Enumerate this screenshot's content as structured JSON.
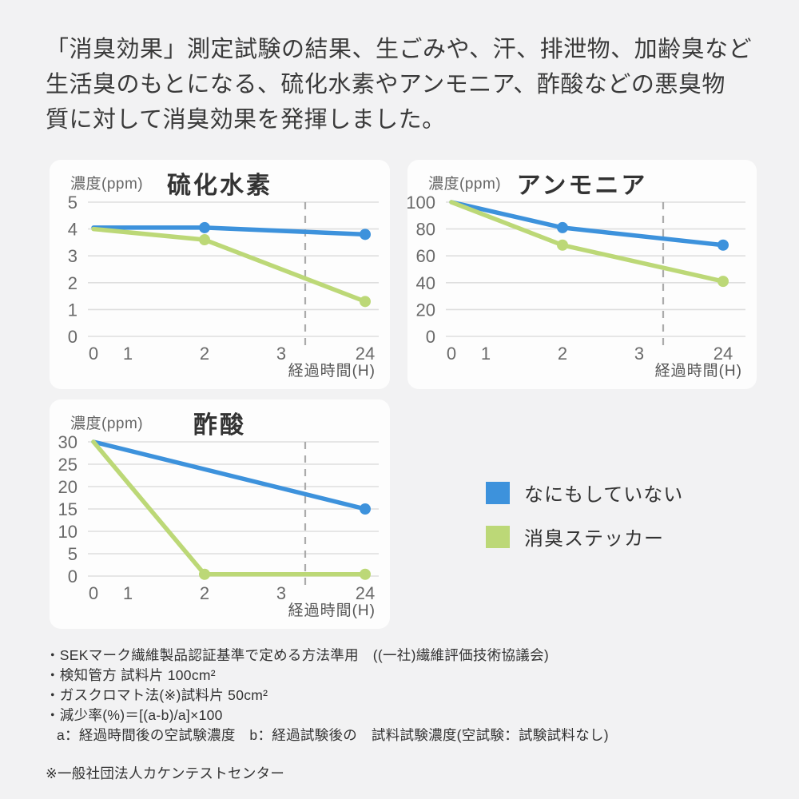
{
  "header": {
    "lines": [
      "「消臭効果」測定試験の結果、生ごみや、汗、排泄物、加齢臭など",
      "生活臭のもとになる、硫化水素やアンモニア、酢酸などの悪臭物",
      "質に対して消臭効果を発揮しました。"
    ]
  },
  "colors": {
    "background": "#f2f2f3",
    "card": "#fdfdfd",
    "blue_series": "#3D92DC",
    "green_series": "#BCD877",
    "grid": "#dedede",
    "dashed_line": "#ababab",
    "tick_text": "#6a6a6a"
  },
  "legend": {
    "items": [
      {
        "label": "なにもしていない",
        "color": "#3D92DC"
      },
      {
        "label": "消臭ステッカー",
        "color": "#BCD877"
      }
    ]
  },
  "chart_data": [
    {
      "type": "line",
      "title": "硫化水素",
      "ylabel": "濃度(ppm)",
      "xlabel": "経過時間(H)",
      "x_ticks": [
        "0",
        "1",
        "2",
        "3",
        "24"
      ],
      "y_ticks": [
        5,
        4,
        3,
        2,
        1,
        0
      ],
      "ylim": [
        0,
        5
      ],
      "grid": true,
      "dashed_reference_line": "vertical, between x=3 and x=24",
      "series": [
        {
          "name": "なにもしていない",
          "color": "#3D92DC",
          "points": [
            {
              "x": 0,
              "y": 4.05
            },
            {
              "x": 2,
              "y": 4.05
            },
            {
              "x": 24,
              "y": 3.8
            }
          ],
          "dots": [
            2,
            24
          ]
        },
        {
          "name": "消臭ステッカー",
          "color": "#BCD877",
          "points": [
            {
              "x": 0,
              "y": 4.0
            },
            {
              "x": 2,
              "y": 3.6
            },
            {
              "x": 24,
              "y": 1.3
            }
          ],
          "dots": [
            2,
            24
          ]
        }
      ]
    },
    {
      "type": "line",
      "title": "アンモニア",
      "ylabel": "濃度(ppm)",
      "xlabel": "経過時間(H)",
      "x_ticks": [
        "0",
        "1",
        "2",
        "3",
        "24"
      ],
      "y_ticks": [
        100,
        80,
        60,
        40,
        20,
        0
      ],
      "ylim": [
        0,
        100
      ],
      "grid": true,
      "dashed_reference_line": "vertical, between x=3 and x=24",
      "series": [
        {
          "name": "なにもしていない",
          "color": "#3D92DC",
          "points": [
            {
              "x": 0,
              "y": 100
            },
            {
              "x": 2,
              "y": 81
            },
            {
              "x": 24,
              "y": 68
            }
          ],
          "dots": [
            2,
            24
          ]
        },
        {
          "name": "消臭ステッカー",
          "color": "#BCD877",
          "points": [
            {
              "x": 0,
              "y": 100
            },
            {
              "x": 2,
              "y": 68
            },
            {
              "x": 24,
              "y": 41
            }
          ],
          "dots": [
            2,
            24
          ]
        }
      ]
    },
    {
      "type": "line",
      "title": "酢酸",
      "ylabel": "濃度(ppm)",
      "xlabel": "経過時間(H)",
      "x_ticks": [
        "0",
        "1",
        "2",
        "3",
        "24"
      ],
      "y_ticks": [
        30,
        25,
        20,
        15,
        10,
        5,
        0
      ],
      "ylim": [
        0,
        30
      ],
      "grid": true,
      "dashed_reference_line": "vertical, between x=3 and x=24",
      "series": [
        {
          "name": "なにもしていない",
          "color": "#3D92DC",
          "points": [
            {
              "x": 0,
              "y": 30
            },
            {
              "x": 24,
              "y": 15
            }
          ],
          "dots": [
            24
          ]
        },
        {
          "name": "消臭ステッカー",
          "color": "#BCD877",
          "points": [
            {
              "x": 0,
              "y": 30
            },
            {
              "x": 2,
              "y": 0.4
            },
            {
              "x": 24,
              "y": 0.4
            }
          ],
          "dots": [
            2,
            24
          ]
        }
      ]
    }
  ],
  "footnotes": {
    "items": [
      "・SEKマーク繊維製品認証基準で定める方法準用　((一社)繊維評価技術協議会)",
      "・検知管方 試料片 100cm²",
      "・ガスクロマト法(※)試料片 50cm²",
      "・減少率(%)＝[(a-b)/a]×100",
      "a：経過時間後の空試験濃度　b：経過試験後の　試料試験濃度(空試験：試験試料なし)"
    ],
    "source_note": "※一般社団法人カケンテストセンター"
  }
}
